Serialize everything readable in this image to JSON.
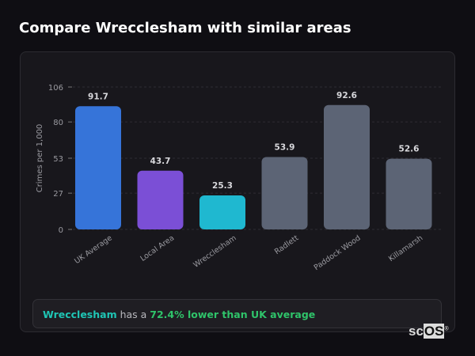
{
  "title": "Compare Wrecclesham with similar areas",
  "chart_data": {
    "type": "bar",
    "categories": [
      "UK Average",
      "Local Area",
      "Wrecclesham",
      "Radlett",
      "Paddock Wood",
      "Killamarsh"
    ],
    "values": [
      91.7,
      43.7,
      25.3,
      53.9,
      92.6,
      52.6
    ],
    "data_labels": [
      "91.7",
      "43.7",
      "25.3",
      "53.9",
      "92.6",
      "52.6"
    ],
    "colors": [
      "#3674d9",
      "#7b4fd6",
      "#1fb8d0",
      "#5c6475",
      "#5c6475",
      "#5c6475"
    ],
    "ylabel": "Crimes per 1,000",
    "yticks": [
      0,
      27,
      53,
      80,
      106
    ],
    "ylim": [
      0,
      106
    ],
    "grid": true
  },
  "summary": {
    "area": "Wrecclesham",
    "middle": " has a ",
    "result": "72.4% lower than UK average"
  },
  "logo": {
    "text_a": "sc",
    "text_b": "OS",
    "mark": "®"
  }
}
